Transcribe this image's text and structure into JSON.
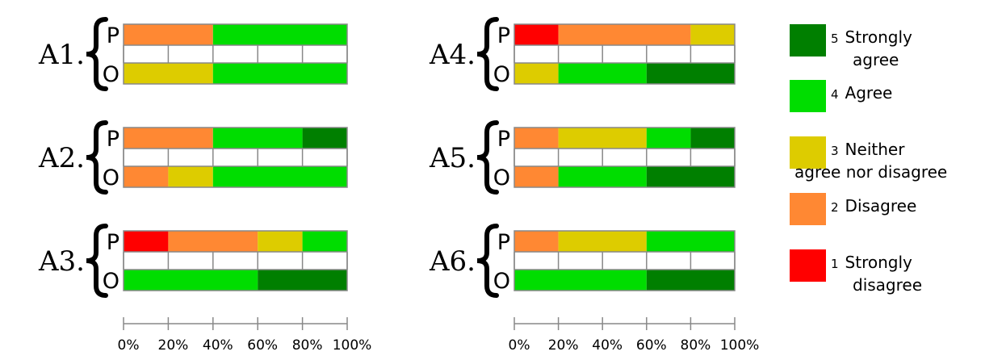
{
  "chart_data": {
    "type": "bar",
    "stacked": true,
    "orientation": "horizontal",
    "scale": "percent",
    "xlim": [
      0,
      100
    ],
    "x_ticks": [
      "0%",
      "20%",
      "40%",
      "60%",
      "80%",
      "100%"
    ],
    "categories": [
      "A1.",
      "A2.",
      "A3.",
      "A4.",
      "A5.",
      "A6."
    ],
    "row_labels": [
      "P",
      "O"
    ],
    "legend": {
      "placement": "right",
      "entries": [
        {
          "num": "5",
          "line1": "Strongly",
          "line2": "agree",
          "color": "#007f00"
        },
        {
          "num": "4",
          "line1": "Agree",
          "line2": "",
          "color": "#00dd00"
        },
        {
          "num": "3",
          "line1": "Neither",
          "line2": "agree nor disagree",
          "color": "#ddcc00"
        },
        {
          "num": "2",
          "line1": "Disagree",
          "line2": "",
          "color": "#ff8833"
        },
        {
          "num": "1",
          "line1": "Strongly",
          "line2": "disagree",
          "color": "#ff0000"
        }
      ]
    },
    "level_colors": {
      "1": "#ff0000",
      "2": "#ff8833",
      "3": "#ddcc00",
      "4": "#00dd00",
      "5": "#007f00"
    },
    "items": [
      {
        "label": "A1.",
        "P": [
          0,
          40,
          0,
          60,
          0
        ],
        "O": [
          0,
          0,
          40,
          60,
          0
        ]
      },
      {
        "label": "A2.",
        "P": [
          0,
          40,
          0,
          40,
          20
        ],
        "O": [
          0,
          20,
          20,
          60,
          0
        ]
      },
      {
        "label": "A3.",
        "P": [
          20,
          40,
          20,
          20,
          0
        ],
        "O": [
          0,
          0,
          0,
          60,
          40
        ]
      },
      {
        "label": "A4.",
        "P": [
          20,
          60,
          20,
          0,
          0
        ],
        "O": [
          0,
          0,
          20,
          40,
          40
        ]
      },
      {
        "label": "A5.",
        "P": [
          0,
          20,
          40,
          20,
          20
        ],
        "O": [
          0,
          20,
          0,
          40,
          40
        ]
      },
      {
        "label": "A6.",
        "P": [
          0,
          20,
          40,
          40,
          0
        ],
        "O": [
          0,
          0,
          0,
          60,
          40
        ]
      }
    ]
  }
}
